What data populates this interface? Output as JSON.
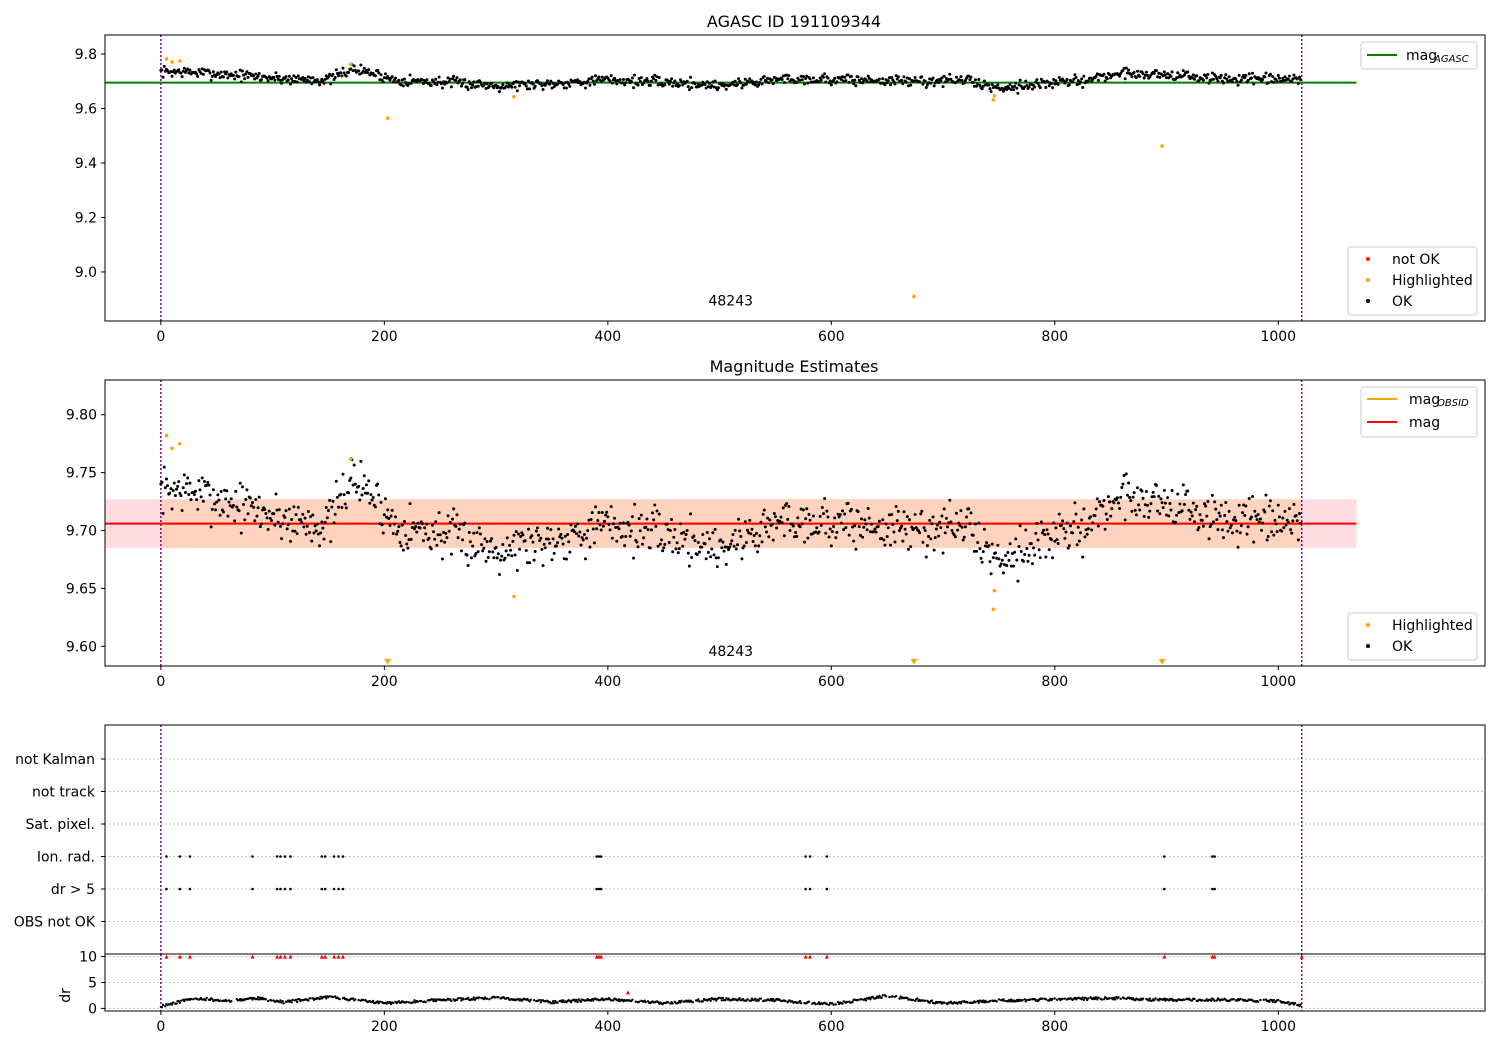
{
  "colors": {
    "ok": "#000000",
    "highlighted": "#ffa500",
    "not_ok": "#ff0000",
    "mag_agasc": "#008000",
    "mag": "#ff0000",
    "mag_obsid": "#ffa500",
    "band_mag": "#ffc0cb",
    "band_obsid": "#ffd0b0",
    "obs_boundary": "#800080",
    "grid": "#b0b0b0"
  },
  "chart_data": [
    {
      "type": "scatter",
      "title": "AGASC ID 191109344",
      "xlabel": "",
      "ylabel": "",
      "xlim": [
        -50,
        1185
      ],
      "ylim": [
        8.82,
        9.87
      ],
      "xticks": [
        0,
        200,
        400,
        600,
        800,
        1000
      ],
      "yticks": [
        9.0,
        9.2,
        9.4,
        9.6,
        9.8
      ],
      "ytick_labels": [
        "9.0",
        "9.2",
        "9.4",
        "9.6",
        "9.8"
      ],
      "obsid_label": {
        "text": "48243",
        "x": 510,
        "y": 8.84
      },
      "obs_boundaries": [
        0,
        1021
      ],
      "mag_agasc": 9.695,
      "mag_line_xrange": [
        -50,
        1070
      ],
      "legend_top": {
        "position": "upper right",
        "entries": [
          {
            "label": "mag",
            "sub": "AGASC",
            "kind": "line",
            "color": "mag_agasc"
          }
        ]
      },
      "legend_bottom": {
        "position": "lower right",
        "entries": [
          {
            "label": "not OK",
            "kind": "dot",
            "color": "not_ok"
          },
          {
            "label": "Highlighted",
            "kind": "dot",
            "color": "highlighted"
          },
          {
            "label": "OK",
            "kind": "dot",
            "color": "ok"
          }
        ]
      },
      "ok_trend": {
        "x": [
          0,
          20,
          60,
          110,
          150,
          170,
          185,
          210,
          260,
          300,
          340,
          400,
          460,
          500,
          560,
          620,
          680,
          720,
          748,
          770,
          820,
          860,
          900,
          940,
          1000,
          1021
        ],
        "y": [
          9.735,
          9.735,
          9.725,
          9.71,
          9.705,
          9.745,
          9.735,
          9.705,
          9.695,
          9.685,
          9.69,
          9.705,
          9.695,
          9.685,
          9.71,
          9.705,
          9.7,
          9.705,
          9.675,
          9.685,
          9.7,
          9.73,
          9.725,
          9.71,
          9.705,
          9.705
        ]
      },
      "highlighted_points": [
        [
          5,
          9.782
        ],
        [
          10,
          9.771
        ],
        [
          17,
          9.775
        ],
        [
          170,
          9.762
        ],
        [
          203,
          9.565
        ],
        [
          316,
          9.643
        ],
        [
          674,
          8.91
        ],
        [
          745,
          9.632
        ],
        [
          746,
          9.647
        ],
        [
          896,
          9.462
        ]
      ]
    },
    {
      "type": "scatter",
      "title": "Magnitude Estimates",
      "xlabel": "",
      "ylabel": "",
      "xlim": [
        -50,
        1185
      ],
      "ylim": [
        9.583,
        9.83
      ],
      "xticks": [
        0,
        200,
        400,
        600,
        800,
        1000
      ],
      "yticks": [
        9.6,
        9.65,
        9.7,
        9.75,
        9.8
      ],
      "ytick_labels": [
        "9.60",
        "9.65",
        "9.70",
        "9.75",
        "9.80"
      ],
      "obsid_label": {
        "text": "48243",
        "x": 510,
        "y": 9.588
      },
      "obs_boundaries": [
        0,
        1021
      ],
      "mag": 9.706,
      "mag_band": [
        9.685,
        9.727
      ],
      "mag_obsid": 9.706,
      "obsid_band": [
        9.685,
        9.727
      ],
      "obsid_band_xrange": [
        0,
        1021
      ],
      "mag_line_xrange": [
        -50,
        1070
      ],
      "legend_top": {
        "position": "upper right",
        "entries": [
          {
            "label": "mag",
            "sub": "OBSID",
            "kind": "line",
            "color": "mag_obsid"
          },
          {
            "label": "mag",
            "sub": "",
            "kind": "line",
            "color": "mag"
          }
        ]
      },
      "legend_bottom": {
        "position": "lower right",
        "entries": [
          {
            "label": "Highlighted",
            "kind": "dot",
            "color": "highlighted"
          },
          {
            "label": "OK",
            "kind": "dot",
            "color": "ok"
          }
        ]
      },
      "highlighted_points": [
        [
          5,
          9.782
        ],
        [
          10,
          9.771
        ],
        [
          17,
          9.775
        ],
        [
          170,
          9.762
        ],
        [
          316,
          9.643
        ],
        [
          745,
          9.632
        ],
        [
          746,
          9.648
        ]
      ],
      "off_axis_markers": [
        203,
        674,
        896
      ]
    },
    {
      "type": "scatter",
      "title": "",
      "xlabel": "",
      "ylabel": "",
      "xlim": [
        -50,
        1185
      ],
      "obs_boundaries": [
        0,
        1021
      ],
      "flag_labels": [
        "not Kalman",
        "not track",
        "Sat. pixel.",
        "Ion. rad.",
        "dr > 5",
        "OBS not OK"
      ],
      "flags": {
        "Ion. rad.": [
          5,
          17,
          26,
          82,
          104,
          107,
          111,
          116,
          144,
          147,
          155,
          159,
          163,
          390,
          392,
          394,
          577,
          581,
          596,
          898,
          941,
          943
        ],
        "dr > 5": [
          5,
          17,
          26,
          82,
          104,
          107,
          111,
          116,
          144,
          147,
          155,
          159,
          163,
          390,
          392,
          394,
          577,
          581,
          596,
          898,
          941,
          943
        ]
      }
    },
    {
      "type": "scatter",
      "title": "",
      "xlabel": "",
      "ylabel": "dr",
      "xlim": [
        -50,
        1185
      ],
      "ylim": [
        -0.5,
        10.5
      ],
      "xticks": [
        0,
        200,
        400,
        600,
        800,
        1000
      ],
      "yticks": [
        0,
        5,
        10
      ],
      "ytick_labels": [
        "0",
        "5",
        "10"
      ],
      "obs_boundaries": [
        0,
        1021
      ],
      "dr_trend": {
        "x": [
          0,
          30,
          60,
          85,
          110,
          150,
          200,
          250,
          300,
          350,
          400,
          450,
          500,
          550,
          600,
          650,
          700,
          750,
          800,
          850,
          900,
          950,
          1000,
          1021
        ],
        "y": [
          0.4,
          2.0,
          1.4,
          2.0,
          1.2,
          2.2,
          1.0,
          1.6,
          2.0,
          1.2,
          1.8,
          1.0,
          1.8,
          1.6,
          0.8,
          2.4,
          1.0,
          1.5,
          1.7,
          2.0,
          1.6,
          1.7,
          1.4,
          0.5
        ]
      },
      "not_ok_points": [
        [
          5,
          10
        ],
        [
          17,
          10
        ],
        [
          26,
          10
        ],
        [
          82,
          10
        ],
        [
          104,
          10
        ],
        [
          107,
          10
        ],
        [
          111,
          10
        ],
        [
          116,
          10
        ],
        [
          144,
          10
        ],
        [
          147,
          10
        ],
        [
          155,
          10
        ],
        [
          159,
          10
        ],
        [
          163,
          10
        ],
        [
          390,
          10
        ],
        [
          392,
          10
        ],
        [
          394,
          10
        ],
        [
          418,
          3.1
        ],
        [
          577,
          10
        ],
        [
          581,
          10
        ],
        [
          596,
          10
        ],
        [
          898,
          10
        ],
        [
          941,
          10
        ],
        [
          943,
          10
        ],
        [
          1021,
          10
        ]
      ]
    }
  ]
}
